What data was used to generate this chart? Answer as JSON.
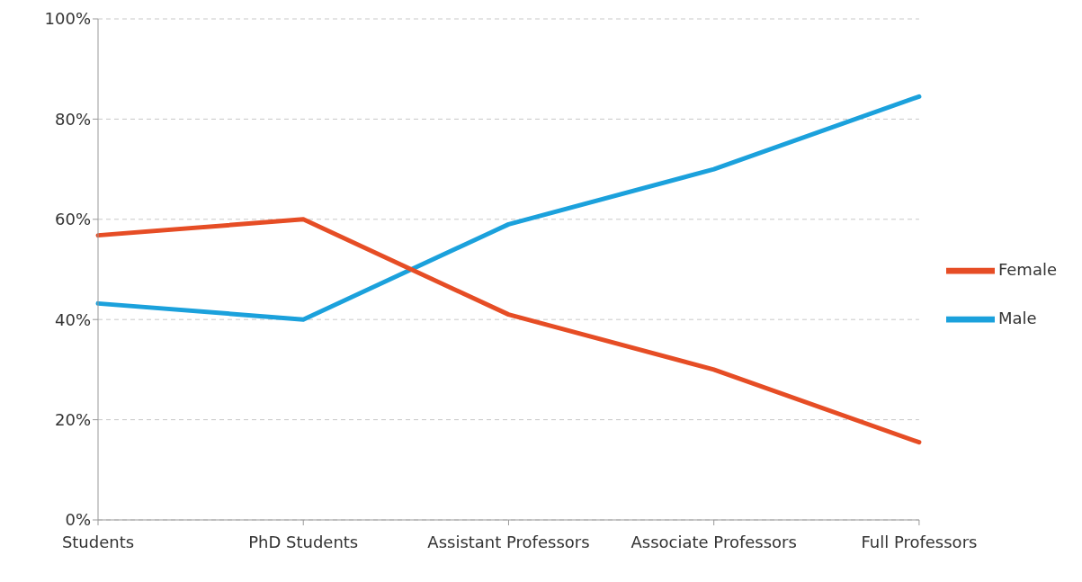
{
  "chart_data": {
    "type": "line",
    "categories": [
      "Students",
      "PhD Students",
      "Assistant Professors",
      "Associate Professors",
      "Full Professors"
    ],
    "series": [
      {
        "name": "Male",
        "color": "#1ba1dc",
        "values": [
          43.2,
          40,
          59,
          70,
          84.5
        ]
      },
      {
        "name": "Female",
        "color": "#e64d25",
        "values": [
          56.8,
          60,
          41,
          30,
          15.5
        ]
      }
    ],
    "ylim": [
      0,
      100
    ],
    "yticks": [
      {
        "value": 0,
        "label": "0%"
      },
      {
        "value": 20,
        "label": "20%"
      },
      {
        "value": 40,
        "label": "40%"
      },
      {
        "value": 60,
        "label": "60%"
      },
      {
        "value": 80,
        "label": "80%"
      },
      {
        "value": 100,
        "label": "100%"
      }
    ],
    "grid": "y",
    "legend": "right",
    "line_style": "solid"
  }
}
